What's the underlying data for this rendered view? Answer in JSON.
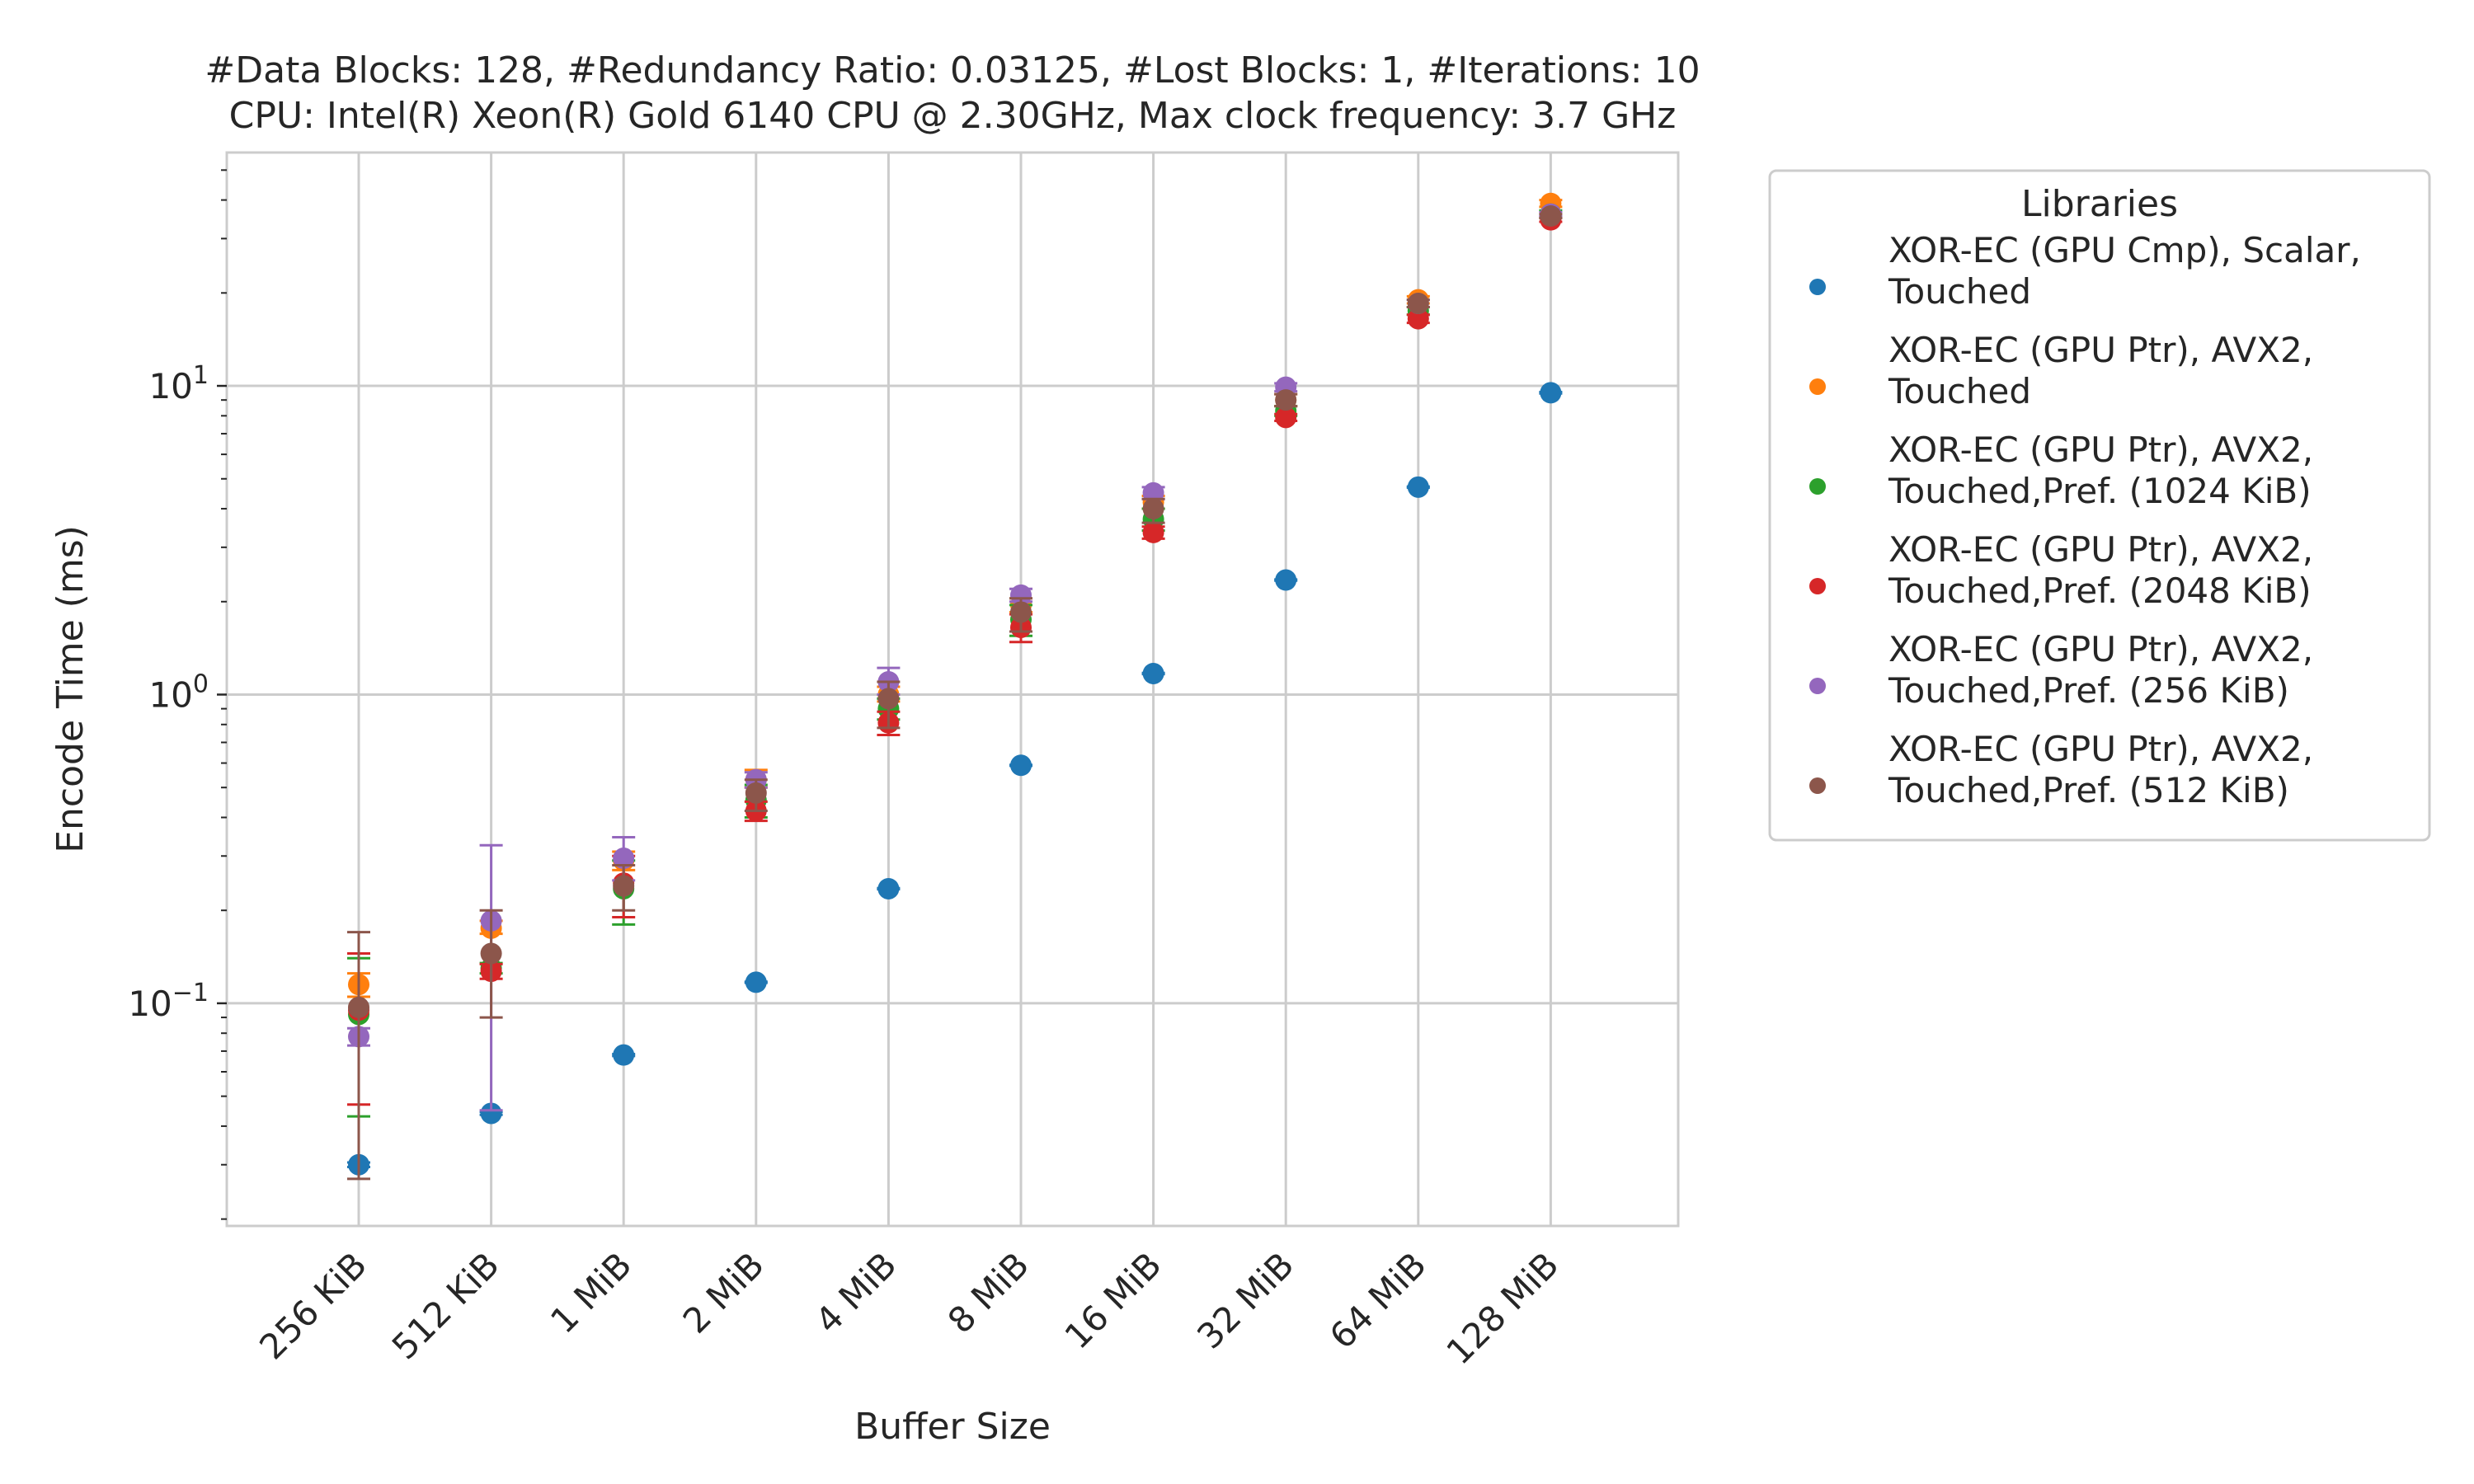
{
  "chart_data": {
    "type": "scatter",
    "title": [
      "#Data Blocks: 128, #Redundancy Ratio: 0.03125, #Lost Blocks: 1, #Iterations: 10",
      "CPU: Intel(R) Xeon(R) Gold 6140 CPU @ 2.30GHz, Max clock frequency: 3.7 GHz"
    ],
    "xlabel": "Buffer Size",
    "ylabel": "Encode Time (ms)",
    "yscale": "log",
    "ylim": [
      0.019,
      57
    ],
    "yticks": [
      {
        "value": 0.1,
        "base": "10",
        "exp": "−1"
      },
      {
        "value": 1,
        "base": "10",
        "exp": "0"
      },
      {
        "value": 10,
        "base": "10",
        "exp": "1"
      }
    ],
    "categories": [
      "256 KiB",
      "512 KiB",
      "1 MiB",
      "2 MiB",
      "4 MiB",
      "8 MiB",
      "16 MiB",
      "32 MiB",
      "64 MiB",
      "128 MiB"
    ],
    "grid": true,
    "legend": {
      "title": "Libraries",
      "placement": "outside-right"
    },
    "series": [
      {
        "name": "XOR-EC (GPU Cmp), Scalar,\nTouched",
        "color": "#1f77b4",
        "values": [
          0.03,
          0.044,
          0.068,
          0.117,
          0.235,
          0.59,
          1.17,
          2.35,
          4.7,
          9.5
        ],
        "err_low": [
          0.0295,
          0.0435,
          0.0675,
          0.1165,
          0.234,
          0.588,
          1.165,
          2.34,
          4.68,
          9.45
        ],
        "err_high": [
          0.0305,
          0.0445,
          0.0685,
          0.1175,
          0.236,
          0.592,
          1.175,
          2.36,
          4.72,
          9.55
        ]
      },
      {
        "name": "XOR-EC (GPU Ptr), AVX2,\nTouched",
        "color": "#ff7f0e",
        "values": [
          0.115,
          0.175,
          0.29,
          0.53,
          1.0,
          1.95,
          4.2,
          9.0,
          19.0,
          39.0
        ],
        "err_low": [
          0.105,
          0.168,
          0.27,
          0.5,
          0.95,
          1.85,
          4.0,
          8.6,
          18.5,
          38.0
        ],
        "err_high": [
          0.125,
          0.185,
          0.31,
          0.57,
          1.06,
          2.05,
          4.4,
          9.4,
          19.5,
          40.0
        ]
      },
      {
        "name": "XOR-EC (GPU Ptr), AVX2,\nTouched,Pref. (1024 KiB)",
        "color": "#2ca02c",
        "values": [
          0.092,
          0.13,
          0.235,
          0.455,
          0.9,
          1.75,
          3.7,
          8.3,
          17.5,
          36.0
        ],
        "err_low": [
          0.043,
          0.125,
          0.18,
          0.4,
          0.83,
          1.55,
          3.4,
          8.0,
          17.0,
          35.0
        ],
        "err_high": [
          0.14,
          0.135,
          0.29,
          0.51,
          0.97,
          1.95,
          4.0,
          8.6,
          18.0,
          37.0
        ]
      },
      {
        "name": "XOR-EC (GPU Ptr), AVX2,\nTouched,Pref. (2048 KiB)",
        "color": "#d62728",
        "values": [
          0.095,
          0.127,
          0.245,
          0.42,
          0.81,
          1.65,
          3.35,
          7.9,
          16.5,
          34.5
        ],
        "err_low": [
          0.047,
          0.12,
          0.19,
          0.39,
          0.74,
          1.48,
          3.2,
          7.7,
          16.0,
          34.0
        ],
        "err_high": [
          0.145,
          0.134,
          0.3,
          0.45,
          0.88,
          1.82,
          3.5,
          8.1,
          17.0,
          35.0
        ]
      },
      {
        "name": "XOR-EC (GPU Ptr), AVX2,\nTouched,Pref. (256 KiB)",
        "color": "#9467bd",
        "values": [
          0.078,
          0.185,
          0.295,
          0.53,
          1.1,
          2.1,
          4.5,
          9.9,
          18.5,
          36.0
        ],
        "err_low": [
          0.073,
          0.045,
          0.25,
          0.5,
          1.0,
          2.0,
          4.3,
          9.6,
          18.0,
          35.5
        ],
        "err_high": [
          0.083,
          0.325,
          0.345,
          0.56,
          1.22,
          2.2,
          4.7,
          10.2,
          19.0,
          36.5
        ]
      },
      {
        "name": "XOR-EC (GPU Ptr), AVX2,\nTouched,Pref. (512 KiB)",
        "color": "#8c564b",
        "values": [
          0.097,
          0.145,
          0.24,
          0.48,
          0.97,
          1.85,
          4.0,
          9.0,
          18.5,
          35.5
        ],
        "err_low": [
          0.027,
          0.09,
          0.2,
          0.42,
          0.78,
          1.6,
          3.6,
          8.6,
          18.0,
          35.0
        ],
        "err_high": [
          0.17,
          0.2,
          0.28,
          0.53,
          1.1,
          2.05,
          4.3,
          9.4,
          19.0,
          36.0
        ]
      }
    ]
  }
}
